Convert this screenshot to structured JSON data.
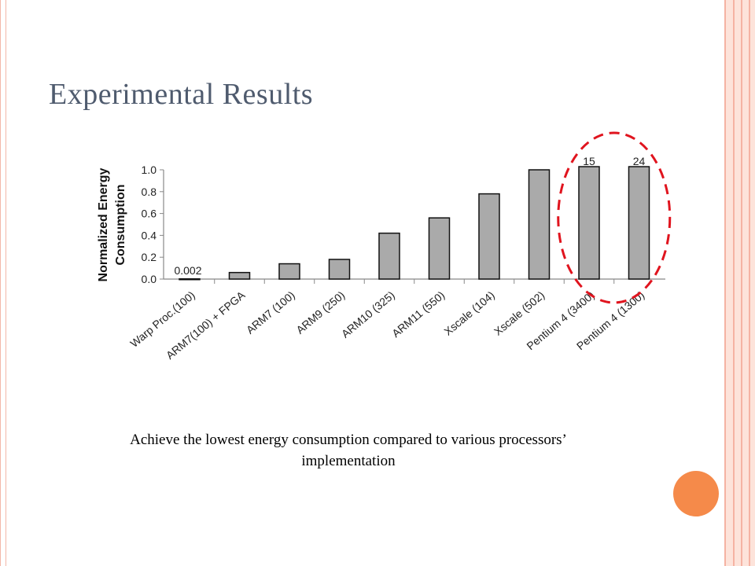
{
  "slide": {
    "title": "Experimental Results",
    "caption": "Achieve the lowest energy consumption compared to various processors’ implementation"
  },
  "colors": {
    "bar": "#aaaaaa",
    "highlight_circle": "#e0141e",
    "accent_dot": "#f58a4a",
    "title": "#4f5b6e"
  },
  "chart_data": {
    "type": "bar",
    "title": "",
    "ylabel": "Normalized Energy Consumption",
    "xlabel": "",
    "ylim": [
      0,
      1.0
    ],
    "yticks": [
      "0.0",
      "0.2",
      "0.4",
      "0.6",
      "0.8",
      "1.0"
    ],
    "categories": [
      "Warp Proc.(100)",
      "ARM7(100) + FPGA",
      "ARM7 (100)",
      "ARM9 (250)",
      "ARM10 (325)",
      "ARM11 (550)",
      "Xscale (104)",
      "Xscale (502)",
      "Pentium 4 (3400)",
      "Pentium 4 (1300)"
    ],
    "values": [
      0.002,
      0.06,
      0.14,
      0.18,
      0.42,
      0.56,
      0.78,
      1.0,
      15,
      24
    ],
    "data_labels": [
      "0.002",
      "",
      "",
      "",
      "",
      "",
      "",
      "",
      "15",
      "24"
    ],
    "grid": false,
    "highlighted": [
      "Pentium 4 (3400)",
      "Pentium 4 (1300)"
    ]
  }
}
